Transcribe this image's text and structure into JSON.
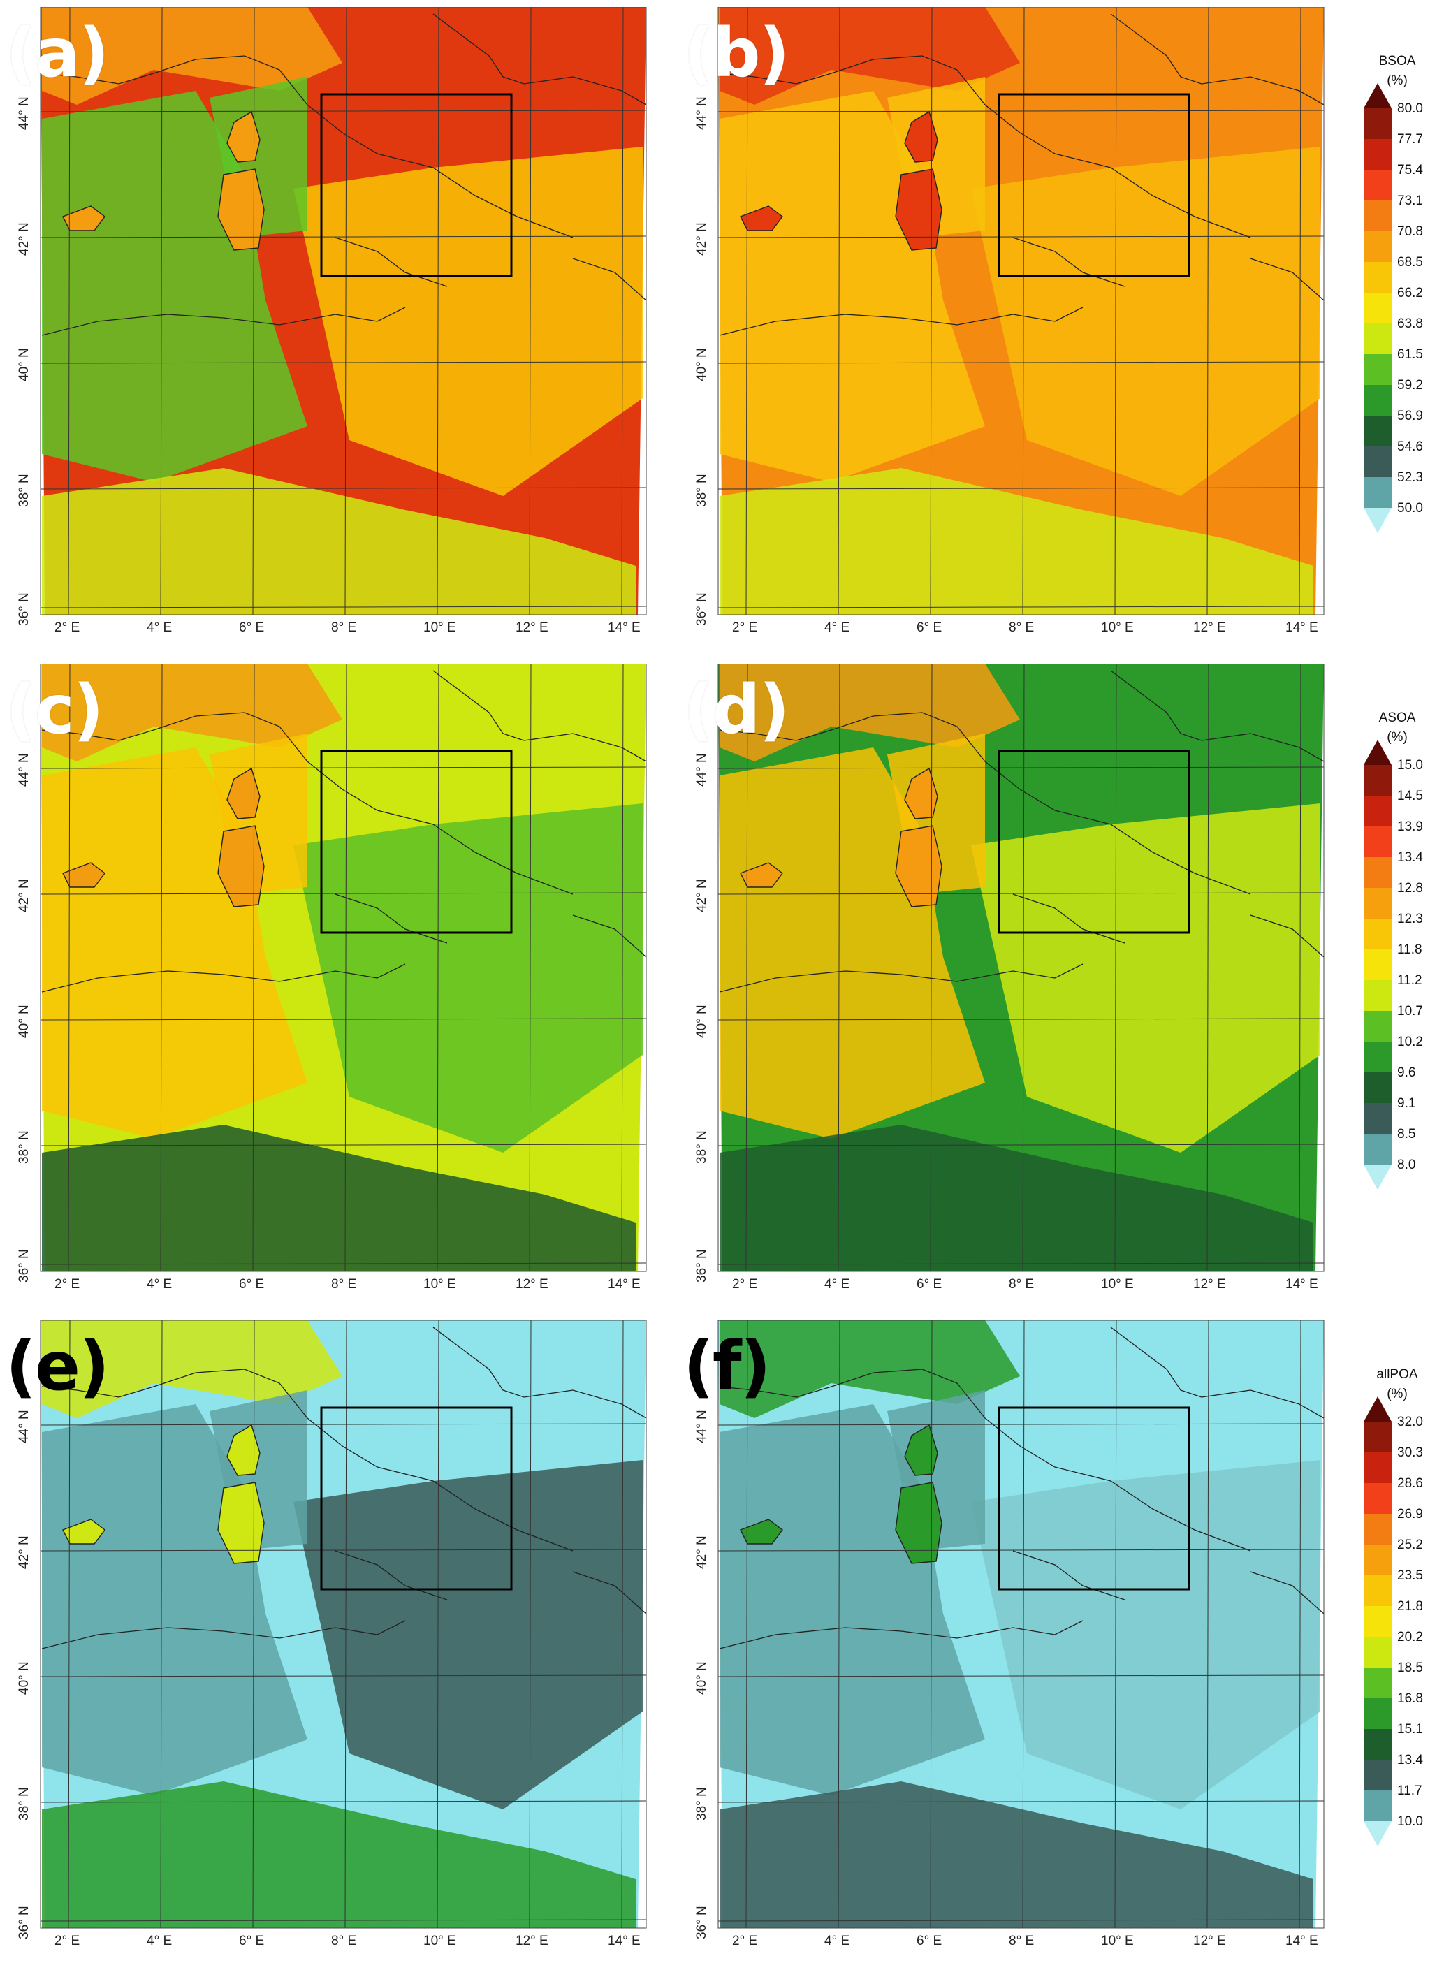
{
  "panels": [
    {
      "id": "a",
      "label": "(a)",
      "label_color": "white",
      "colors": [
        "#e1390f",
        "#f9c503",
        "#5cc526",
        "#cdea12",
        "#f49d11"
      ],
      "lon_ticks": [
        "2° E",
        "4° E",
        "6° E",
        "8° E",
        "10° E",
        "12° E",
        "14° E"
      ],
      "lat_ticks": [
        "36° N",
        "38° N",
        "40° N",
        "42° N",
        "44° N"
      ]
    },
    {
      "id": "b",
      "label": "(b)",
      "label_color": "white",
      "colors": [
        "#f48a10",
        "#f9b808",
        "#f9c20a",
        "#cfe714",
        "#e53a10"
      ],
      "lon_ticks": [
        "2° E",
        "4° E",
        "6° E",
        "8° E",
        "10° E",
        "12° E",
        "14° E"
      ],
      "lat_ticks": [
        "36° N",
        "38° N",
        "40° N",
        "42° N",
        "44° N"
      ]
    },
    {
      "id": "c",
      "label": "(c)",
      "label_color": "white",
      "colors": [
        "#cde811",
        "#5cc024",
        "#f9c403",
        "#1c5a2a",
        "#f29c12"
      ],
      "lon_ticks": [
        "2° E",
        "4° E",
        "6° E",
        "8° E",
        "10° E",
        "12° E",
        "14° E"
      ],
      "lat_ticks": [
        "36° N",
        "38° N",
        "40° N",
        "42° N",
        "44° N"
      ]
    },
    {
      "id": "d",
      "label": "(d)",
      "label_color": "white",
      "colors": [
        "#2b9a2a",
        "#cfe713",
        "#f8c205",
        "#1e5e2c",
        "#f49b12"
      ],
      "lon_ticks": [
        "2° E",
        "4° E",
        "6° E",
        "8° E",
        "10° E",
        "12° E",
        "14° E"
      ],
      "lat_ticks": [
        "36° N",
        "38° N",
        "40° N",
        "42° N",
        "44° N"
      ]
    },
    {
      "id": "e",
      "label": "(e)",
      "label_color": "black",
      "colors": [
        "#8ee4ea",
        "#3a5b58",
        "#5fa4a6",
        "#2a9b2a",
        "#cfe713"
      ],
      "lon_ticks": [
        "2° E",
        "4° E",
        "6° E",
        "8° E",
        "10° E",
        "12° E",
        "14° E"
      ],
      "lat_ticks": [
        "36° N",
        "38° N",
        "40° N",
        "42° N",
        "44° N"
      ]
    },
    {
      "id": "f",
      "label": "(f)",
      "label_color": "black",
      "colors": [
        "#8ee4ea",
        "#7fc9cc",
        "#5fa4a6",
        "#3a5b58",
        "#2a9b2a"
      ],
      "lon_ticks": [
        "2° E",
        "4° E",
        "6° E",
        "8° E",
        "10° E",
        "12° E",
        "14° E"
      ],
      "lat_ticks": [
        "36° N",
        "38° N",
        "40° N",
        "42° N",
        "44° N"
      ]
    }
  ],
  "legends": [
    {
      "id": "bsoa",
      "title": "BSOA",
      "unit": "(%)",
      "ticks": [
        "80.0",
        "77.7",
        "75.4",
        "73.1",
        "70.8",
        "68.5",
        "66.2",
        "63.8",
        "61.5",
        "59.2",
        "56.9",
        "54.6",
        "52.3",
        "50.0"
      ]
    },
    {
      "id": "asoa",
      "title": "ASOA",
      "unit": "(%)",
      "ticks": [
        "15.0",
        "14.5",
        "13.9",
        "13.4",
        "12.8",
        "12.3",
        "11.8",
        "11.2",
        "10.7",
        "10.2",
        "9.6",
        "9.1",
        "8.5",
        "8.0"
      ]
    },
    {
      "id": "allpoa",
      "title": "allPOA",
      "unit": "(%)",
      "ticks": [
        "32.0",
        "30.3",
        "28.6",
        "26.9",
        "25.2",
        "23.5",
        "21.8",
        "20.2",
        "18.5",
        "16.8",
        "15.1",
        "13.4",
        "11.7",
        "10.0"
      ]
    }
  ],
  "legend_colors": [
    "#5a0a05",
    "#8f1a0c",
    "#c9230f",
    "#f2401a",
    "#f37d12",
    "#f6a00d",
    "#f8c507",
    "#f6e30a",
    "#cde811",
    "#5cc024",
    "#2b9a2a",
    "#1e5e2c",
    "#3a5b58",
    "#5fa4a6",
    "#7fc9cc",
    "#b6eef2"
  ]
}
